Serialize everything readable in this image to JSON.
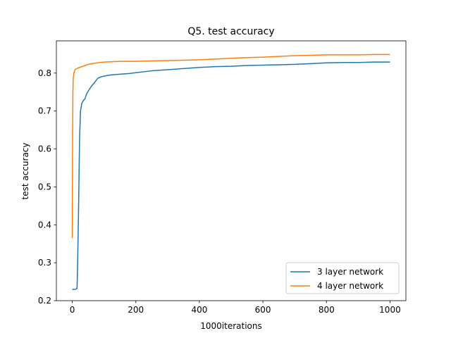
{
  "chart_data": {
    "type": "line",
    "title": "Q5. test accuracy",
    "xlabel": "1000iterations",
    "ylabel": "test accuracy",
    "xlim": [
      -50,
      1050
    ],
    "ylim": [
      0.2,
      0.885
    ],
    "xticks": [
      0,
      200,
      400,
      600,
      800,
      1000
    ],
    "xtick_labels": [
      "0",
      "200",
      "400",
      "600",
      "800",
      "1000"
    ],
    "yticks": [
      0.2,
      0.3,
      0.4,
      0.5,
      0.6,
      0.7,
      0.8
    ],
    "ytick_labels": [
      "0.2",
      "0.3",
      "0.4",
      "0.5",
      "0.6",
      "0.7",
      "0.8"
    ],
    "grid": false,
    "legend_position": "lower-right",
    "series": [
      {
        "name": "3 layer network",
        "color": "#1f77b4",
        "x": [
          0,
          5,
          10,
          15,
          17,
          20,
          23,
          26,
          30,
          35,
          40,
          45,
          50,
          60,
          70,
          80,
          90,
          100,
          120,
          150,
          180,
          200,
          250,
          300,
          350,
          400,
          450,
          500,
          550,
          600,
          650,
          700,
          750,
          800,
          850,
          900,
          950,
          1000
        ],
        "y": [
          0.23,
          0.23,
          0.23,
          0.232,
          0.3,
          0.45,
          0.63,
          0.7,
          0.72,
          0.728,
          0.732,
          0.745,
          0.752,
          0.765,
          0.775,
          0.786,
          0.79,
          0.792,
          0.795,
          0.797,
          0.799,
          0.801,
          0.806,
          0.809,
          0.812,
          0.815,
          0.817,
          0.818,
          0.82,
          0.821,
          0.822,
          0.823,
          0.825,
          0.827,
          0.828,
          0.828,
          0.829,
          0.829
        ]
      },
      {
        "name": "4 layer network",
        "color": "#ff7f0e",
        "x": [
          0,
          1,
          2,
          3,
          5,
          8,
          12,
          20,
          30,
          40,
          50,
          70,
          100,
          150,
          200,
          250,
          300,
          350,
          400,
          450,
          500,
          550,
          600,
          650,
          700,
          750,
          800,
          850,
          900,
          950,
          1000
        ],
        "y": [
          0.365,
          0.62,
          0.75,
          0.785,
          0.8,
          0.808,
          0.811,
          0.814,
          0.817,
          0.82,
          0.823,
          0.826,
          0.829,
          0.831,
          0.831,
          0.832,
          0.833,
          0.834,
          0.835,
          0.837,
          0.839,
          0.841,
          0.842,
          0.844,
          0.846,
          0.847,
          0.848,
          0.848,
          0.848,
          0.849,
          0.849
        ]
      }
    ]
  }
}
